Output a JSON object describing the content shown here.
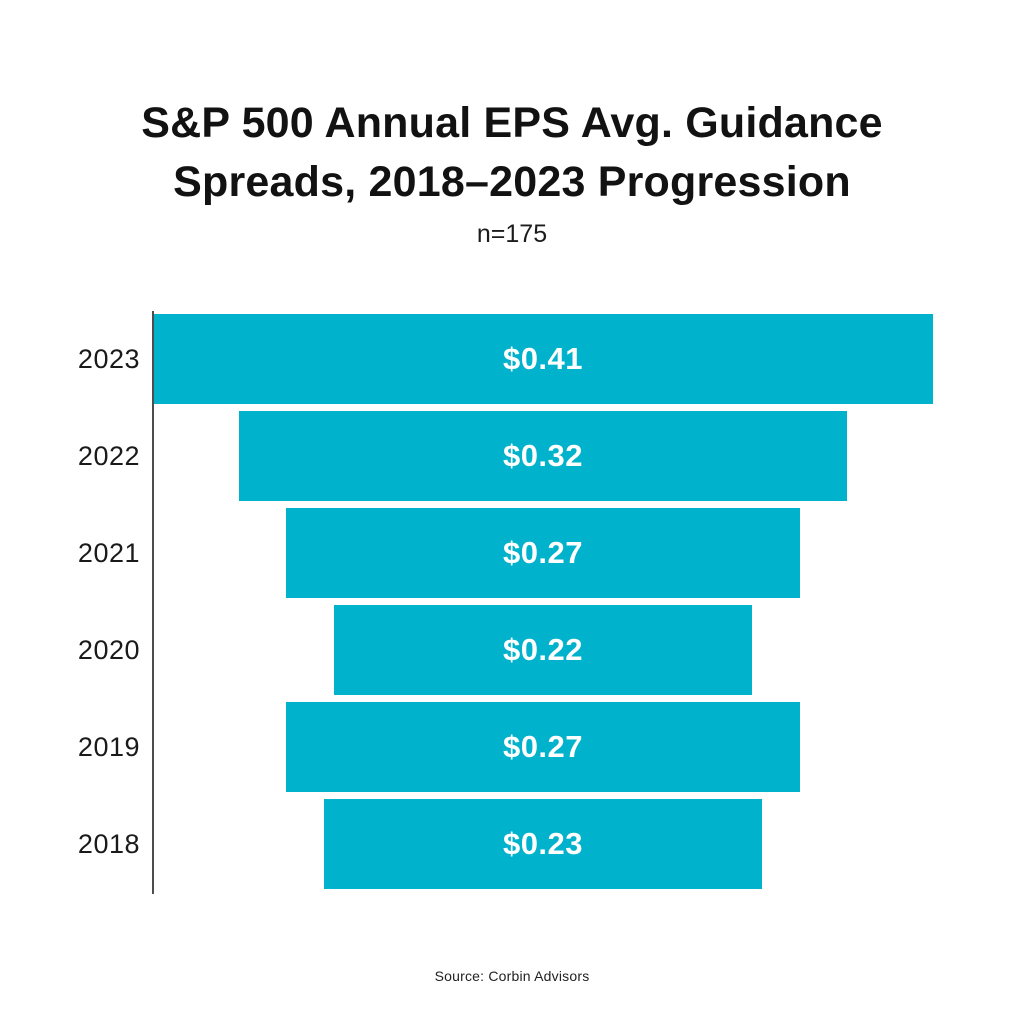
{
  "chart_data": {
    "type": "bar",
    "variant": "horizontal-centered-funnel",
    "title": "S&P 500 Annual EPS Avg. Guidance Spreads, 2018–2023 Progression",
    "title_lines": [
      "S&P 500 Annual EPS Avg. Guidance",
      "Spreads, 2018–2023 Progression"
    ],
    "subtitle": "n=175",
    "categories": [
      "2023",
      "2022",
      "2021",
      "2020",
      "2019",
      "2018"
    ],
    "values": [
      0.41,
      0.32,
      0.27,
      0.22,
      0.27,
      0.23
    ],
    "labels": [
      "$0.41",
      "$0.32",
      "$0.27",
      "$0.22",
      "$0.27",
      "$0.23"
    ],
    "xlim": [
      0,
      0.41
    ],
    "grid": "off",
    "legend": "none",
    "bar_color": "#00B2CB",
    "bar_label_color": "#FFFFFF",
    "axis_color": "#4D4D4D",
    "source": "Source: Corbin Advisors"
  }
}
